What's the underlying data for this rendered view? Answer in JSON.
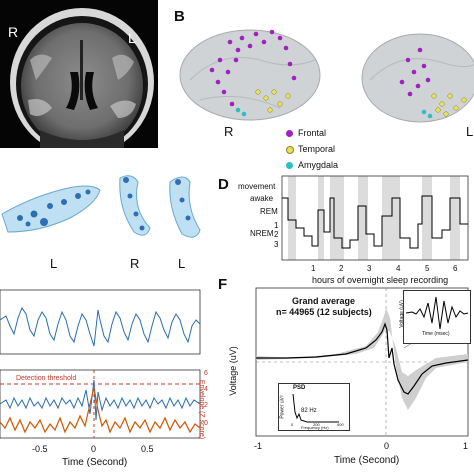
{
  "panelA": {
    "left_label": "R",
    "right_label": "L"
  },
  "panelB": {
    "label": "B",
    "left_brain_label": "R",
    "right_brain_label": "L",
    "legend": [
      {
        "name": "Frontal",
        "color": "#a020c0"
      },
      {
        "name": "Temporal",
        "color": "#e6e05a"
      },
      {
        "name": "Amygdala",
        "color": "#2fbfbf"
      }
    ]
  },
  "panelC": {
    "labels": [
      "L",
      "R",
      "L"
    ]
  },
  "panelD": {
    "label": "D",
    "stages": [
      "movement",
      "awake",
      "REM",
      "NREM"
    ],
    "stage_numbers": [
      "1",
      "2",
      "3"
    ],
    "x_ticks": [
      "1",
      "2",
      "3",
      "4",
      "5",
      "6"
    ],
    "xlabel": "hours of overnight sleep recording"
  },
  "panelE": {
    "detection_label": "Detection threshold",
    "right_axis_label": "Envelope (Z score)",
    "right_ticks": [
      "6",
      "4",
      "2",
      "0"
    ],
    "x_ticks": [
      "-0.5",
      "0",
      "0.5"
    ],
    "xlabel": "Time (Second)"
  },
  "panelF": {
    "label": "F",
    "title_line1": "Grand average",
    "title_line2": "n= 44965 (12 subjects)",
    "ylabel": "Voltage (uV)",
    "x_ticks": [
      "-1",
      "0",
      "1"
    ],
    "xlabel": "Time (Second)",
    "inset_right": {
      "xlabel": "Time (msec)",
      "ylabel": "Voltage (uV)"
    },
    "inset_psd": {
      "title": "PSD",
      "peak_label": "82 Hz",
      "xlabel": "Frequency (Hz)",
      "x_ticks": [
        "0",
        "200",
        "400"
      ],
      "ylabel": "Power uV²"
    }
  }
}
